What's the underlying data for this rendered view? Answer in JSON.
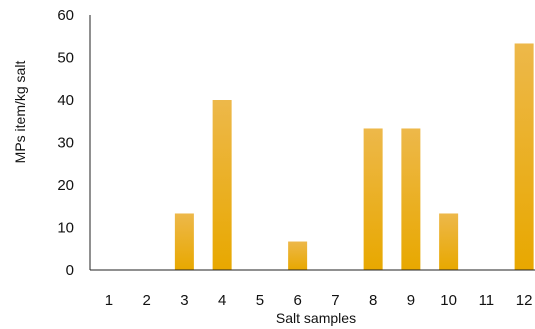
{
  "chart_data": {
    "type": "bar",
    "categories": [
      "1",
      "2",
      "3",
      "4",
      "5",
      "6",
      "7",
      "8",
      "9",
      "10",
      "11",
      "12"
    ],
    "values": [
      0,
      0,
      13.3,
      40,
      0,
      6.7,
      0,
      33.3,
      33.3,
      13.3,
      0,
      53.3
    ],
    "xlabel": "Salt samples",
    "ylabel": "MPs item/kg salt",
    "ylim": [
      0,
      60
    ],
    "yticks": [
      "0",
      "10",
      "20",
      "30",
      "40",
      "50",
      "60"
    ],
    "grid": false,
    "legend": "none",
    "colors": {
      "bar_top": "#EDB84A",
      "bar_bottom": "#E8A800",
      "axis": "#222222"
    }
  }
}
